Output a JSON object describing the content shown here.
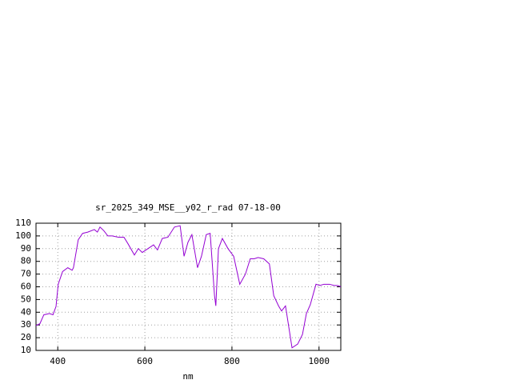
{
  "chart_data": {
    "type": "line",
    "title": "sr_2025_349_MSE__y02_r_rad 07-18-00",
    "x_label": "nm",
    "x": [
      350,
      359,
      368,
      381,
      389,
      396,
      401,
      411,
      423,
      433,
      436,
      447,
      457,
      469,
      484,
      491,
      497,
      506,
      515,
      525,
      539,
      552,
      561,
      576,
      585,
      594,
      607,
      620,
      629,
      640,
      653,
      668,
      681,
      690,
      699,
      708,
      721,
      730,
      741,
      750,
      760,
      763,
      769,
      778,
      791,
      804,
      818,
      831,
      842,
      851,
      860,
      873,
      886,
      896,
      907,
      914,
      923,
      938,
      951,
      962,
      971,
      980,
      993,
      1002,
      1011,
      1024,
      1035,
      1043,
      1050
    ],
    "series": [
      {
        "color": "#9400d3",
        "values": [
          29.5,
          31,
          38,
          39,
          38,
          44.6,
          62,
          72,
          75,
          73,
          75,
          97,
          102,
          103,
          105,
          103,
          107,
          104,
          100,
          100,
          99,
          99,
          94,
          85,
          90,
          87,
          90,
          93,
          89,
          98,
          99,
          107,
          108,
          84,
          95,
          101,
          75,
          84,
          101,
          102,
          53,
          45,
          90,
          98,
          90,
          84,
          62,
          70,
          82,
          82,
          83,
          82,
          78,
          53,
          45,
          41,
          45,
          12,
          15,
          22.6,
          39,
          46,
          62,
          61,
          62,
          62,
          61,
          61,
          60
        ]
      }
    ],
    "xlim": [
      350,
      1050
    ],
    "xticks": [
      400,
      600,
      800,
      1000
    ],
    "ylim": [
      10,
      110
    ],
    "yticks": [
      10,
      20,
      30,
      40,
      50,
      60,
      70,
      80,
      90,
      100,
      110
    ],
    "grid": true
  }
}
